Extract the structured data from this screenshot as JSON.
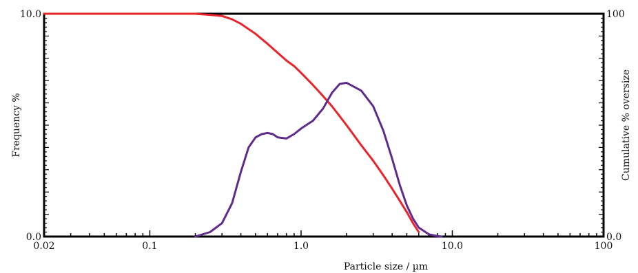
{
  "chart_data": {
    "type": "line",
    "title": "",
    "xlabel": "Particle size / µm",
    "ylabel_left": "Frequency %",
    "ylabel_right": "Cumulative % oversize",
    "x_scale": "log",
    "xlim": [
      0.02,
      100
    ],
    "ylim_left": [
      0,
      10
    ],
    "ylim_right": [
      0,
      100
    ],
    "x_ticks": [
      0.02,
      0.1,
      1.0,
      10.0,
      100
    ],
    "x_tick_labels": [
      "0.02",
      "0.1",
      "1.0",
      "10.0",
      "100"
    ],
    "y_left_ticks": [
      0,
      10
    ],
    "y_left_tick_labels": [
      "0.0",
      "10.0"
    ],
    "y_right_ticks": [
      0,
      100
    ],
    "y_right_tick_labels": [
      "0.0",
      "100"
    ],
    "grid": false,
    "series": [
      {
        "axis": "right",
        "color": "#e8232a",
        "x": [
          0.02,
          0.05,
          0.1,
          0.2,
          0.25,
          0.3,
          0.35,
          0.4,
          0.5,
          0.6,
          0.7,
          0.8,
          0.9,
          1.0,
          1.2,
          1.4,
          1.6,
          1.8,
          2.0,
          2.5,
          3.0,
          3.5,
          4.0,
          4.5,
          5.0,
          5.5,
          6.0
        ],
        "values": [
          100,
          100,
          100,
          100,
          99.5,
          99,
          97.5,
          95.5,
          91,
          86.5,
          82.5,
          79,
          76.5,
          73.5,
          68,
          63,
          58.5,
          54,
          50,
          41,
          34,
          27.5,
          21.5,
          16,
          11,
          6,
          2
        ]
      },
      {
        "axis": "left",
        "color": "#5e2b8c",
        "x": [
          0.2,
          0.25,
          0.3,
          0.35,
          0.4,
          0.45,
          0.5,
          0.55,
          0.6,
          0.65,
          0.7,
          0.8,
          0.9,
          1.0,
          1.2,
          1.4,
          1.6,
          1.8,
          2.0,
          2.5,
          3.0,
          3.5,
          4.0,
          4.5,
          5.0,
          5.5,
          6.0,
          7.0,
          8.0,
          8.5
        ],
        "values": [
          0,
          0.2,
          0.6,
          1.5,
          2.9,
          4.0,
          4.45,
          4.6,
          4.65,
          4.6,
          4.45,
          4.4,
          4.6,
          4.85,
          5.2,
          5.75,
          6.45,
          6.85,
          6.9,
          6.55,
          5.85,
          4.75,
          3.5,
          2.3,
          1.4,
          0.8,
          0.4,
          0.1,
          0.02,
          0
        ]
      }
    ]
  }
}
